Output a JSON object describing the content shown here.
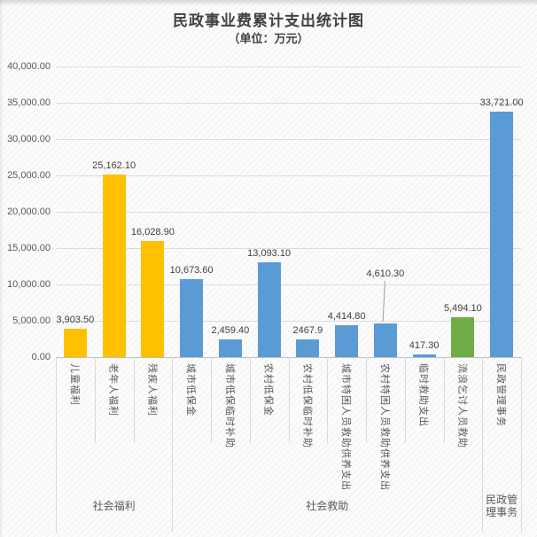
{
  "chart_data": {
    "type": "bar",
    "title": "民政事业费累计支出统计图",
    "subtitle": "（单位：万元）",
    "ylabel": "",
    "xlabel": "",
    "ylim": [
      0,
      40000
    ],
    "ytick_step": 5000,
    "grid": true,
    "legend": "none",
    "yticks_top_to_bottom": [
      "40,000.00",
      "35,000.00",
      "30,000.00",
      "25,000.00",
      "20,000.00",
      "15,000.00",
      "10,000.00",
      "5,000.00",
      "0.00"
    ],
    "palette": {
      "social_welfare": "#FFC000",
      "social_assistance": "#5B9BD5",
      "vagrant_rescue": "#70AD47"
    },
    "bars": [
      {
        "category": "儿童福利",
        "value": 3903.5,
        "label": "3,903.50",
        "color": "#FFC000"
      },
      {
        "category": "老年人福利",
        "value": 25162.1,
        "label": "25,162.10",
        "color": "#FFC000"
      },
      {
        "category": "残疾人福利",
        "value": 16028.9,
        "label": "16,028.90",
        "color": "#FFC000"
      },
      {
        "category": "城市低保金",
        "value": 10673.6,
        "label": "10,673.60",
        "color": "#5B9BD5"
      },
      {
        "category": "城市低保临时补助",
        "value": 2459.4,
        "label": "2,459.40",
        "color": "#5B9BD5"
      },
      {
        "category": "农村低保金",
        "value": 13093.1,
        "label": "13,093.10",
        "color": "#5B9BD5"
      },
      {
        "category": "农村低保临时补助",
        "value": 2467.9,
        "label": "2467.9",
        "color": "#5B9BD5"
      },
      {
        "category": "城市特困人员救助供养支出",
        "value": 4414.8,
        "label": "4,414.80",
        "color": "#5B9BD5"
      },
      {
        "category": "农村特困人员救助供养支出",
        "value": 4610.3,
        "label": "4,610.30",
        "color": "#5B9BD5",
        "label_raised": 49
      },
      {
        "category": "临时救助支出",
        "value": 417.3,
        "label": "417.30",
        "color": "#5B9BD5"
      },
      {
        "category": "流浪乞讨人员救助",
        "value": 5494.1,
        "label": "5,494.10",
        "color": "#70AD47"
      },
      {
        "category": "民政管理事务",
        "value": 33721.0,
        "label": "33,721.00",
        "color": "#5B9BD5"
      }
    ],
    "groups": [
      {
        "label": "社会福利",
        "start": 0,
        "end": 2
      },
      {
        "label": "社会救助",
        "start": 3,
        "end": 10
      },
      {
        "label": "民政管理事务",
        "start": 11,
        "end": 11
      }
    ]
  }
}
